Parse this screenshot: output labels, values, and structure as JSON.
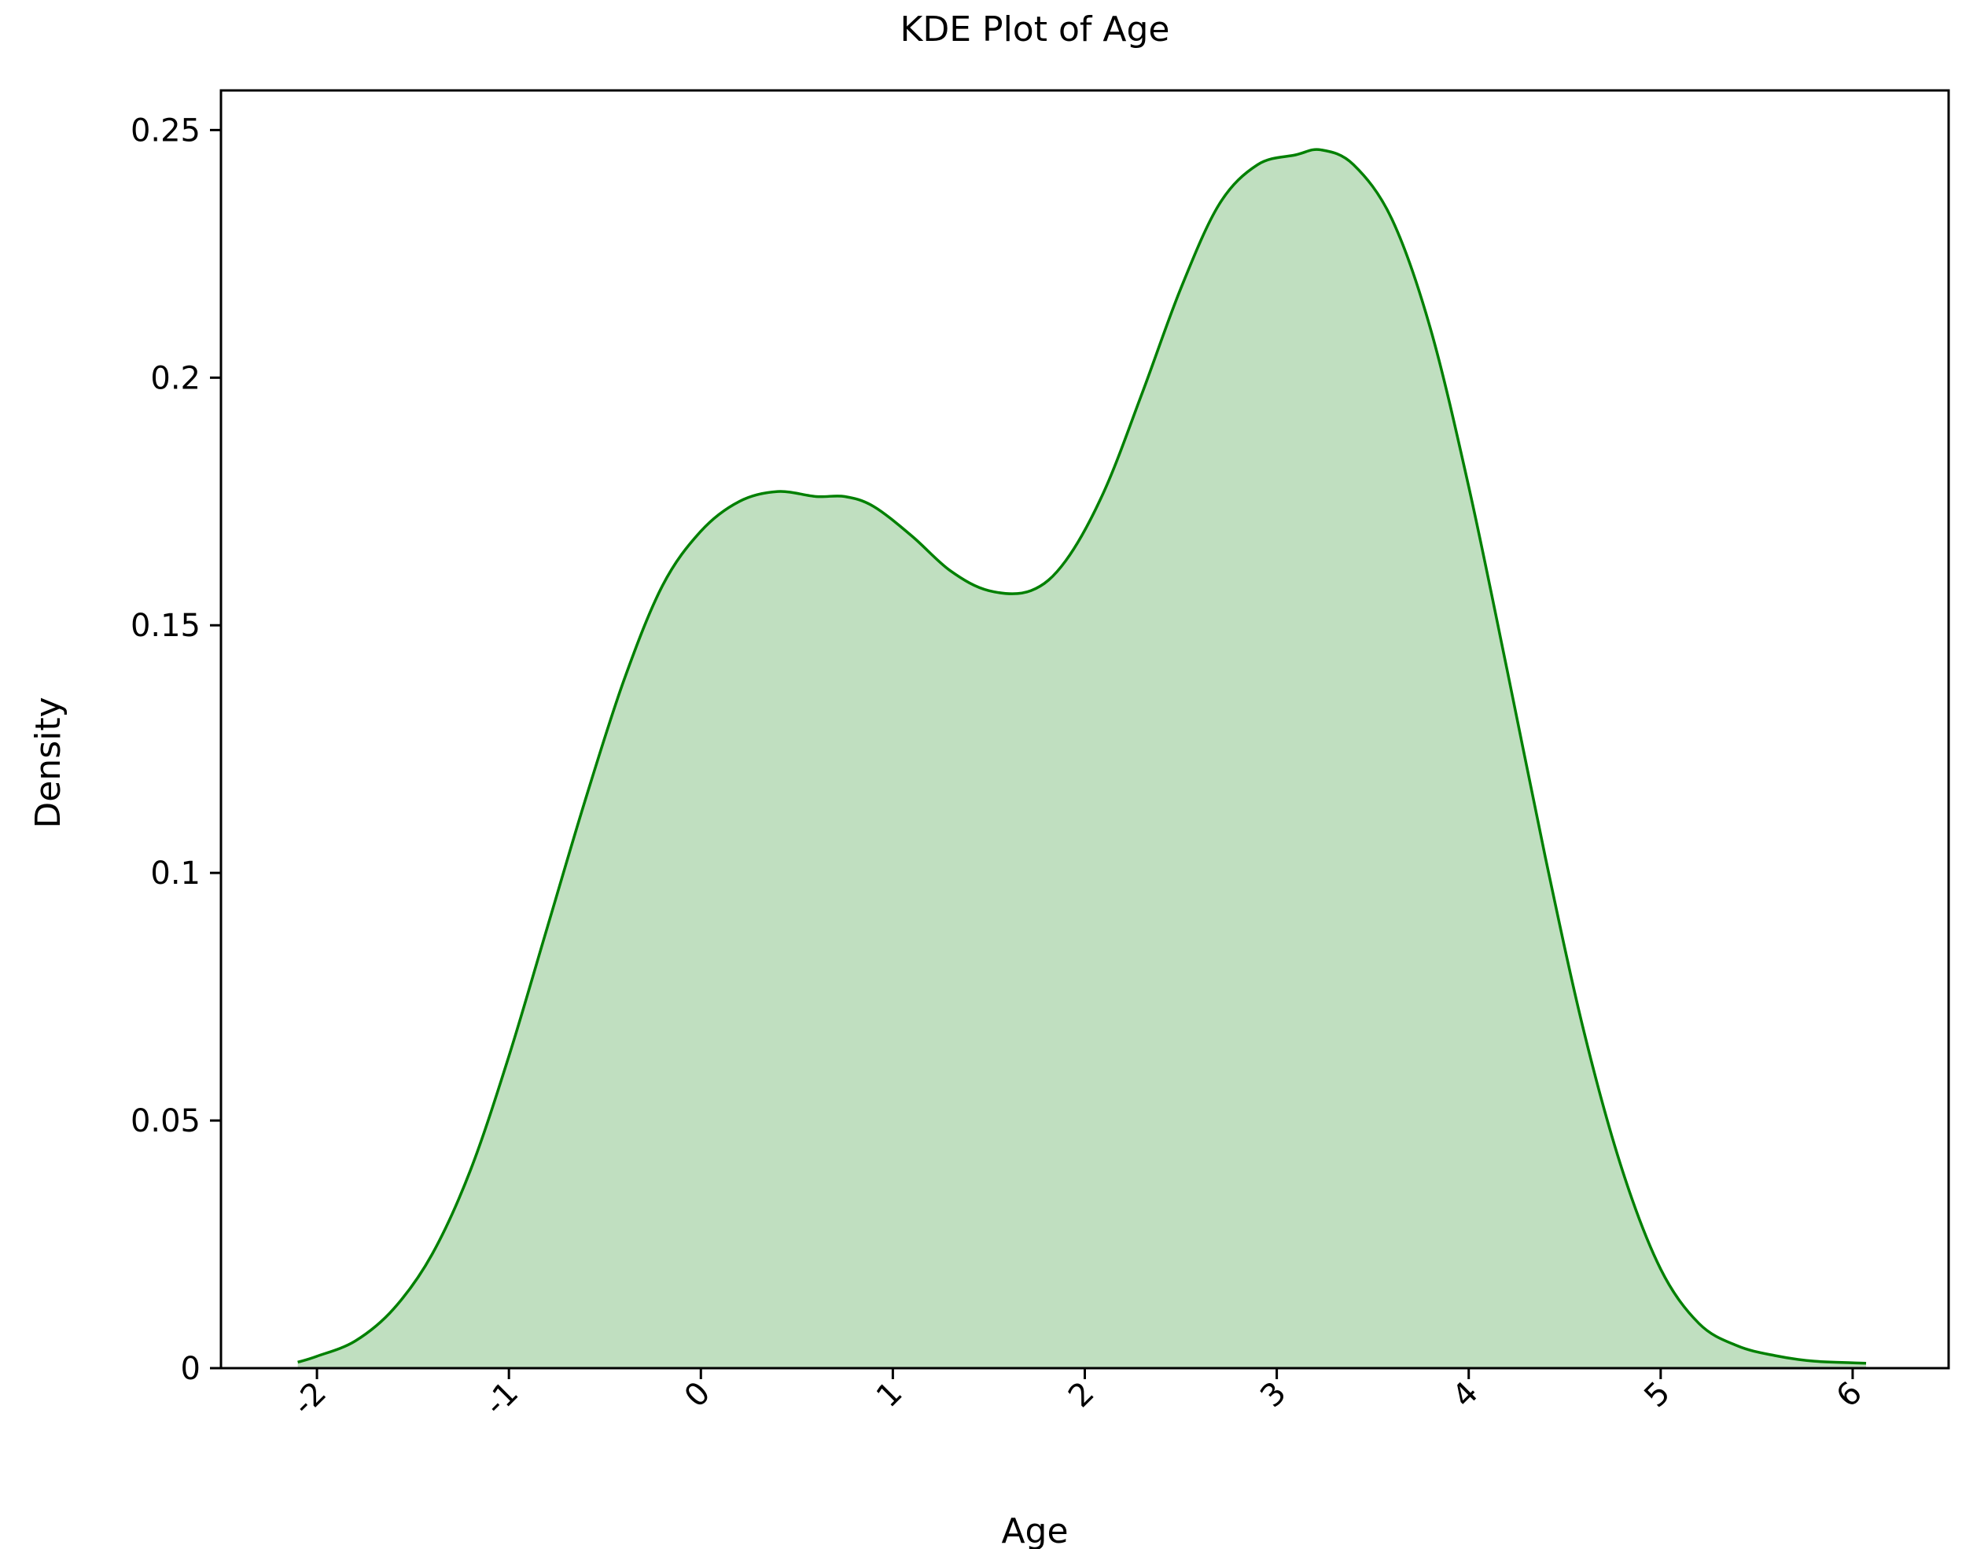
{
  "chart_data": {
    "type": "area",
    "title": "KDE Plot of Age",
    "xlabel": "Age",
    "ylabel": "Density",
    "xlim": [
      -2.5,
      6.5
    ],
    "ylim": [
      0,
      0.258
    ],
    "x_ticks": [
      -2,
      -1,
      0,
      1,
      2,
      3,
      4,
      5,
      6
    ],
    "x_tick_labels": [
      "-2",
      "-1",
      "0",
      "1",
      "2",
      "3",
      "4",
      "5",
      "6"
    ],
    "x_tick_rotation": 45,
    "y_ticks": [
      0,
      0.05,
      0.1,
      0.15,
      0.2,
      0.25
    ],
    "y_tick_labels": [
      "0",
      "0.05",
      "0.1",
      "0.15",
      "0.2",
      "0.25"
    ],
    "grid": false,
    "line_color": "#008000",
    "fill_color": "#c0dfc0",
    "series": [
      {
        "x": [
          -2.1,
          -2.0,
          -1.8,
          -1.6,
          -1.4,
          -1.2,
          -1.0,
          -0.8,
          -0.6,
          -0.4,
          -0.2,
          0.0,
          0.2,
          0.4,
          0.6,
          0.75,
          0.9,
          1.1,
          1.3,
          1.5,
          1.72,
          1.9,
          2.1,
          2.3,
          2.5,
          2.7,
          2.9,
          3.1,
          3.23,
          3.4,
          3.6,
          3.8,
          4.0,
          4.2,
          4.4,
          4.6,
          4.8,
          5.0,
          5.2,
          5.4,
          5.6,
          5.8,
          6.07
        ],
        "y": [
          0.0012,
          0.0024,
          0.0055,
          0.012,
          0.023,
          0.04,
          0.063,
          0.089,
          0.115,
          0.139,
          0.158,
          0.169,
          0.175,
          0.177,
          0.176,
          0.176,
          0.174,
          0.168,
          0.161,
          0.157,
          0.157,
          0.163,
          0.177,
          0.197,
          0.218,
          0.235,
          0.243,
          0.245,
          0.246,
          0.243,
          0.232,
          0.21,
          0.178,
          0.141,
          0.103,
          0.068,
          0.04,
          0.02,
          0.009,
          0.0045,
          0.0025,
          0.0014,
          0.001
        ]
      }
    ]
  }
}
